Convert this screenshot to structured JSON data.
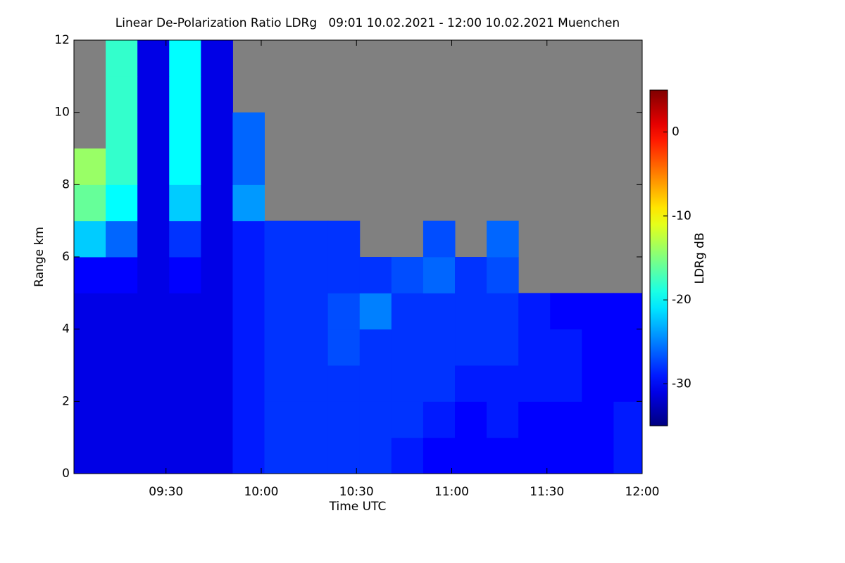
{
  "chart_data": {
    "type": "heatmap",
    "title": "Linear De-Polarization Ratio LDRg   09:01 10.02.2021 - 12:00 10.02.2021 Muenchen",
    "x_label": "Time UTC",
    "y_label": "Range km",
    "colorbar_label": "LDRg dB",
    "xlim": [
      541,
      720
    ],
    "xticks": [
      {
        "value": 570,
        "label": "09:30"
      },
      {
        "value": 600,
        "label": "10:00"
      },
      {
        "value": 630,
        "label": "10:30"
      },
      {
        "value": 660,
        "label": "11:00"
      },
      {
        "value": 690,
        "label": "11:30"
      },
      {
        "value": 720,
        "label": "12:00"
      }
    ],
    "ylim": [
      0,
      12
    ],
    "yticks": [
      0,
      2,
      4,
      6,
      8,
      10,
      12
    ],
    "zlim": [
      -35,
      5
    ],
    "zticks": [
      0,
      -10,
      -20,
      -30
    ],
    "colormap": "jet",
    "missing_color": "#808080",
    "x": [
      546,
      556,
      566,
      576,
      586,
      596,
      606,
      616,
      626,
      636,
      646,
      656,
      666,
      676,
      686,
      696,
      706,
      716
    ],
    "y": [
      0.5,
      1.5,
      2.5,
      3.5,
      4.5,
      5.5,
      6.5,
      7.5,
      8.5,
      9.5,
      10.5,
      11.5
    ],
    "z": [
      [
        -31,
        -31,
        -31,
        -31,
        -31,
        -29,
        -28,
        -28,
        -28,
        -28,
        -29,
        -30,
        -30,
        -30,
        -30,
        -30,
        -30,
        -29
      ],
      [
        -31,
        -31,
        -31,
        -31,
        -31,
        -29,
        -28,
        -28,
        -28,
        -28,
        -28,
        -29,
        -30,
        -29,
        -30,
        -30,
        -30,
        -29
      ],
      [
        -31,
        -31,
        -31,
        -31,
        -31,
        -29,
        -28,
        -28,
        -28,
        -28,
        -28,
        -28,
        -29,
        -29,
        -29,
        -29,
        -30,
        -30
      ],
      [
        -31,
        -31,
        -31,
        -31,
        -31,
        -29,
        -28,
        -28,
        -27,
        -28,
        -28,
        -28,
        -28,
        -28,
        -29,
        -29,
        -30,
        -30
      ],
      [
        -31,
        -31,
        -31,
        -31,
        -31,
        -29,
        -28,
        -28,
        -27,
        -25,
        -28,
        -28,
        -28,
        -28,
        -29,
        -30,
        -30,
        -30
      ],
      [
        -30,
        -30,
        -31,
        -30,
        -31,
        -29,
        -28,
        -28,
        -28,
        -28,
        -27,
        -26,
        -28,
        -27,
        null,
        null,
        null,
        null
      ],
      [
        -22,
        -26,
        -31,
        -28,
        -31,
        -29,
        -28,
        -28,
        -28,
        null,
        null,
        -27,
        null,
        -26,
        null,
        null,
        null,
        null
      ],
      [
        -16,
        -20,
        -31,
        -22,
        -31,
        -24,
        null,
        null,
        null,
        null,
        null,
        null,
        null,
        null,
        null,
        null,
        null,
        null
      ],
      [
        -14,
        -18,
        -31,
        -20,
        -31,
        -26,
        null,
        null,
        null,
        null,
        null,
        null,
        null,
        null,
        null,
        null,
        null,
        null
      ],
      [
        null,
        -18,
        -31,
        -20,
        -31,
        -26,
        null,
        null,
        null,
        null,
        null,
        null,
        null,
        null,
        null,
        null,
        null,
        null
      ],
      [
        null,
        -18,
        -31,
        -20,
        -31,
        null,
        null,
        null,
        null,
        null,
        null,
        null,
        null,
        null,
        null,
        null,
        null,
        null
      ],
      [
        null,
        -18,
        -31,
        -20,
        -31,
        null,
        null,
        null,
        null,
        null,
        null,
        null,
        null,
        null,
        null,
        null,
        null,
        null
      ]
    ]
  }
}
